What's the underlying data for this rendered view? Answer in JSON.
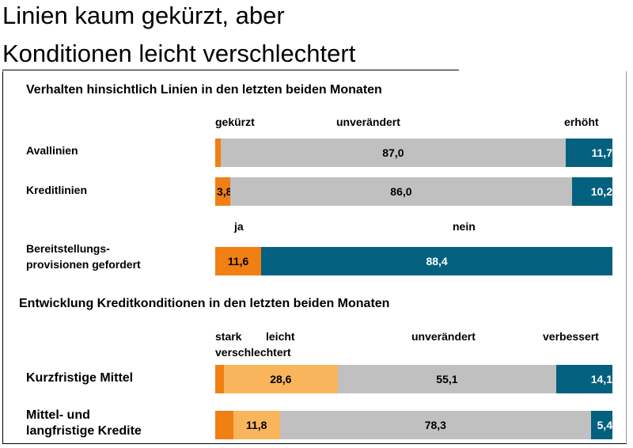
{
  "title": {
    "line1": "Linien kaum gekürzt, aber",
    "line2": "Konditionen leicht verschlechtert"
  },
  "colors": {
    "dark_orange": "#f07f14",
    "light_orange": "#f9b55b",
    "grey": "#c0c0c0",
    "teal": "#03617f",
    "label_dark": "#000000",
    "label_light": "#ffffff"
  },
  "chart_data": [
    {
      "type": "bar",
      "stacked": "horizontal-100",
      "title": "Verhalten hinsichtlich Linien in den letzten beiden Monaten",
      "headers": {
        "gekuerzt": "gekürzt",
        "unveraendert": "unverändert",
        "erhoeht": "erhöht"
      },
      "categories": [
        "Avallinien",
        "Kreditlinien"
      ],
      "series": [
        {
          "name": "gekürzt",
          "values": [
            1.3,
            3.8
          ],
          "labels": [
            "",
            "3,8"
          ]
        },
        {
          "name": "unverändert",
          "values": [
            87.0,
            86.0
          ],
          "labels": [
            "87,0",
            "86,0"
          ]
        },
        {
          "name": "erhöht",
          "values": [
            11.7,
            10.2
          ],
          "labels": [
            "11,7",
            "10,2"
          ]
        }
      ]
    },
    {
      "type": "bar",
      "stacked": "horizontal-100",
      "headers": {
        "ja": "ja",
        "nein": "nein"
      },
      "categories": [
        [
          "Bereitstellungs-",
          "provisionen gefordert"
        ]
      ],
      "series": [
        {
          "name": "ja",
          "values": [
            11.6
          ],
          "labels": [
            "11,6"
          ]
        },
        {
          "name": "nein",
          "values": [
            88.4
          ],
          "labels": [
            "88,4"
          ]
        }
      ]
    },
    {
      "type": "bar",
      "stacked": "horizontal-100",
      "title": "Entwicklung Kreditkonditionen in den letzten beiden Monaten",
      "headers": {
        "stark": "stark",
        "leicht": "leicht",
        "verschlechtert": "verschlechtert",
        "unveraendert": "unverändert",
        "verbessert": "verbessert"
      },
      "categories": [
        "Kurzfristige Mittel",
        [
          "Mittel- und",
          "langfristige Kredite"
        ]
      ],
      "series": [
        {
          "name": "stark verschlechtert",
          "values": [
            2.2,
            4.5
          ],
          "labels": [
            "",
            ""
          ]
        },
        {
          "name": "leicht verschlechtert",
          "values": [
            28.6,
            11.8
          ],
          "labels": [
            "28,6",
            "11,8"
          ]
        },
        {
          "name": "unverändert",
          "values": [
            55.1,
            78.3
          ],
          "labels": [
            "55,1",
            "78,3"
          ]
        },
        {
          "name": "verbessert",
          "values": [
            14.1,
            5.4
          ],
          "labels": [
            "14,1",
            "5,4"
          ]
        }
      ]
    }
  ]
}
